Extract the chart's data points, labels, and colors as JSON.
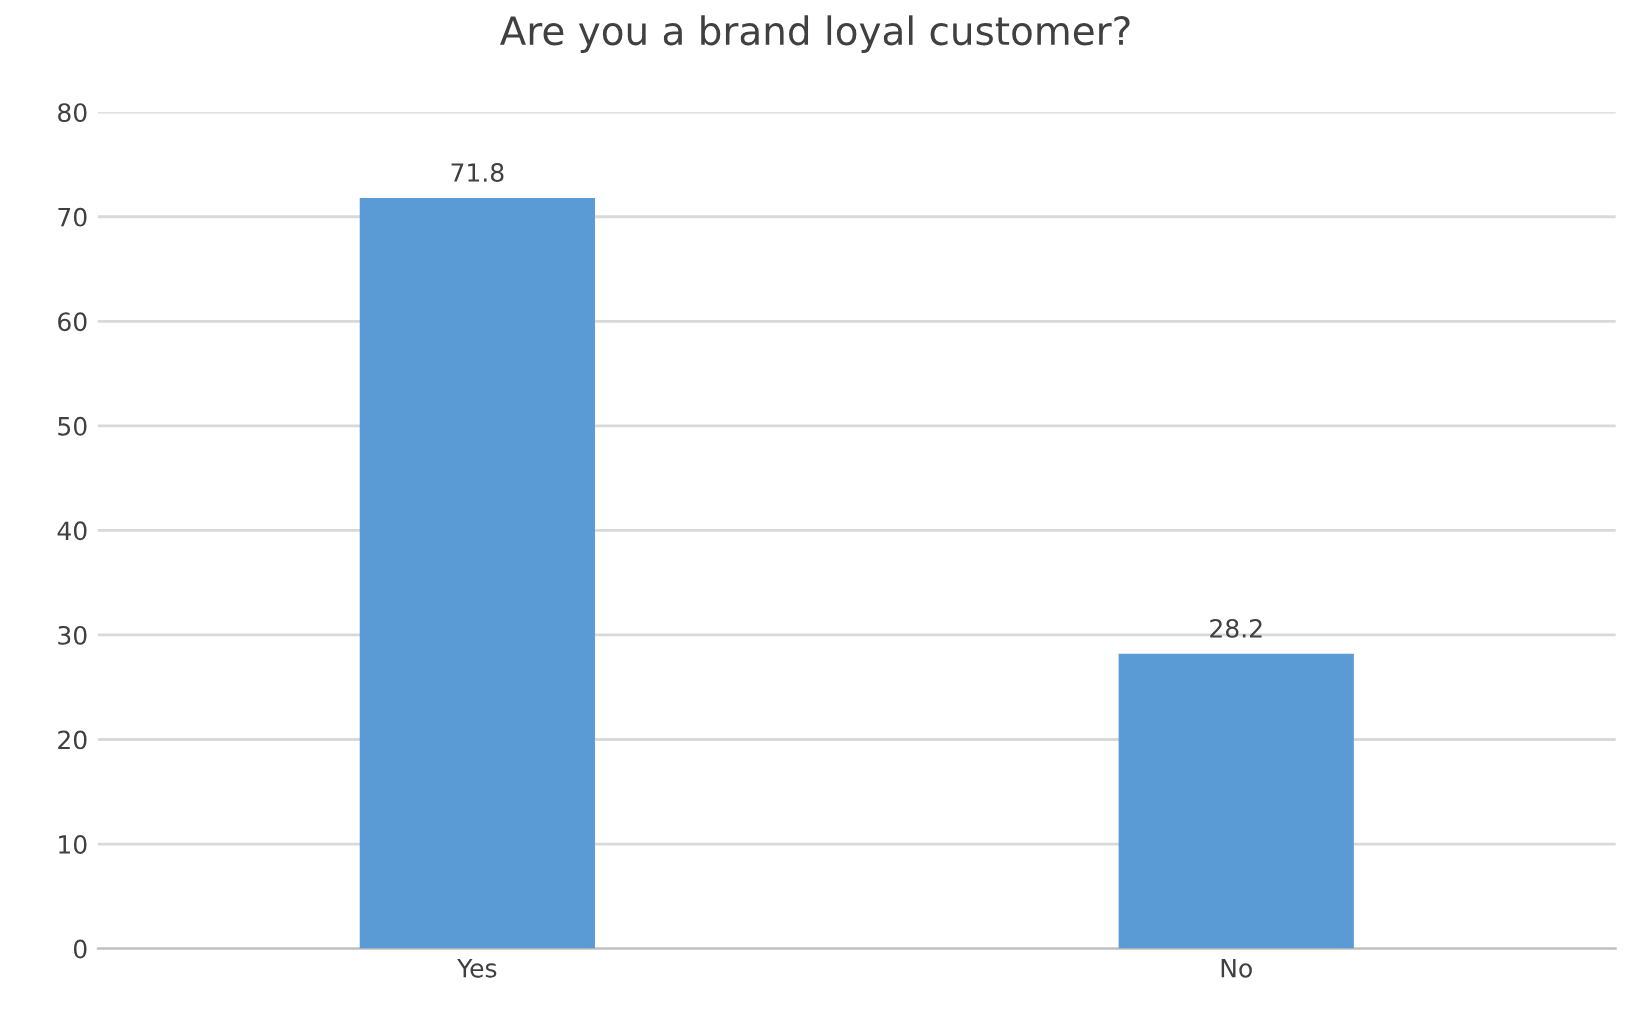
{
  "chart_data": {
    "type": "bar",
    "title": "Are you a brand loyal customer?",
    "categories": [
      "Yes",
      "No"
    ],
    "values": [
      71.8,
      28.2
    ],
    "color": "#5b9bd5",
    "ylim": [
      0,
      80
    ],
    "yticks": [
      0,
      10,
      20,
      30,
      40,
      50,
      60,
      70,
      80
    ],
    "grid": "y",
    "data_labels": true
  }
}
